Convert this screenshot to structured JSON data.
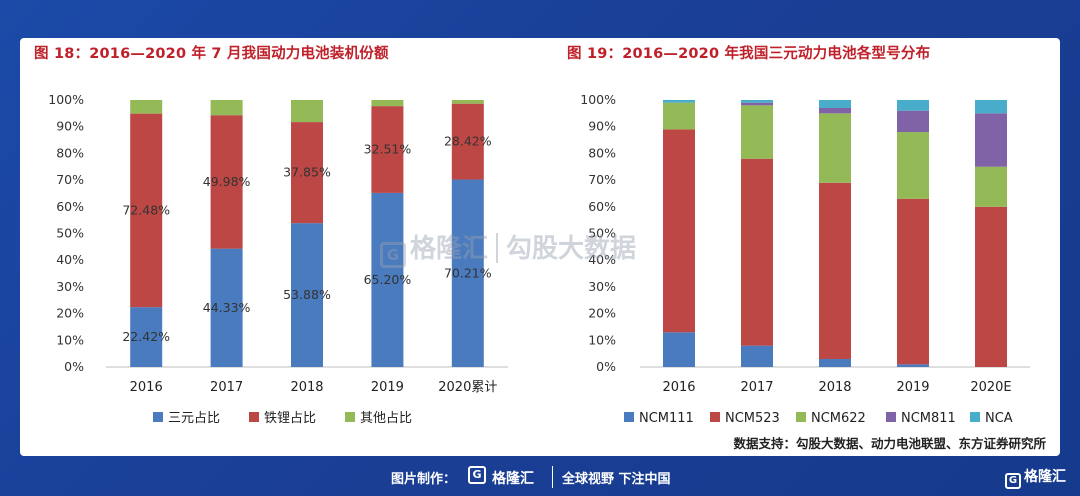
{
  "titles": {
    "left": "图 18：2016—2020 年 7 月我国动力电池装机份额",
    "right": "图 19：2016—2020 年我国三元动力电池各型号分布"
  },
  "source": "数据支持：勾股大数据、动力电池联盟、东方证券研究所",
  "watermark": {
    "logo": "G",
    "brand": "格隆汇",
    "text": "勾股大数据"
  },
  "footer": {
    "credit": "图片制作：",
    "logo": "G",
    "brand": "格隆汇",
    "slogan": "全球视野 下注中国",
    "corner_brand": "格隆汇"
  },
  "chart_data": [
    {
      "type": "bar",
      "stacked": true,
      "categories": [
        "2016",
        "2017",
        "2018",
        "2019",
        "2020累计"
      ],
      "yticks": [
        "0%",
        "10%",
        "20%",
        "30%",
        "40%",
        "50%",
        "60%",
        "70%",
        "80%",
        "90%",
        "100%"
      ],
      "ylim": [
        0,
        100
      ],
      "legend_position": "bottom",
      "series": [
        {
          "name": "三元占比",
          "color": "#4a7bbf",
          "values": [
            22.42,
            44.33,
            53.88,
            65.2,
            70.21
          ],
          "labels": [
            "22.42%",
            "44.33%",
            "53.88%",
            "65.20%",
            "70.21%"
          ]
        },
        {
          "name": "铁锂占比",
          "color": "#bd4744",
          "values": [
            72.48,
            49.98,
            37.85,
            32.51,
            28.42
          ],
          "labels": [
            "72.48%",
            "49.98%",
            "37.85%",
            "32.51%",
            "28.42%"
          ]
        },
        {
          "name": "其他占比",
          "color": "#94b957",
          "values": [
            5.1,
            5.69,
            8.27,
            2.29,
            1.37
          ]
        }
      ]
    },
    {
      "type": "bar",
      "stacked": true,
      "categories": [
        "2016",
        "2017",
        "2018",
        "2019",
        "2020E"
      ],
      "yticks": [
        "0%",
        "10%",
        "20%",
        "30%",
        "40%",
        "50%",
        "60%",
        "70%",
        "80%",
        "90%",
        "100%"
      ],
      "ylim": [
        0,
        100
      ],
      "legend_position": "bottom",
      "series": [
        {
          "name": "NCM111",
          "color": "#4a7bbf",
          "values": [
            13,
            8,
            3,
            1,
            0
          ]
        },
        {
          "name": "NCM523",
          "color": "#bd4744",
          "values": [
            76,
            70,
            66,
            62,
            60
          ]
        },
        {
          "name": "NCM622",
          "color": "#94b957",
          "values": [
            10,
            20,
            26,
            25,
            15
          ]
        },
        {
          "name": "NCM811",
          "color": "#7f63a6",
          "values": [
            0,
            1,
            2,
            8,
            20
          ]
        },
        {
          "name": "NCA",
          "color": "#4aaccb",
          "values": [
            1,
            1,
            3,
            4,
            5
          ]
        }
      ]
    }
  ]
}
